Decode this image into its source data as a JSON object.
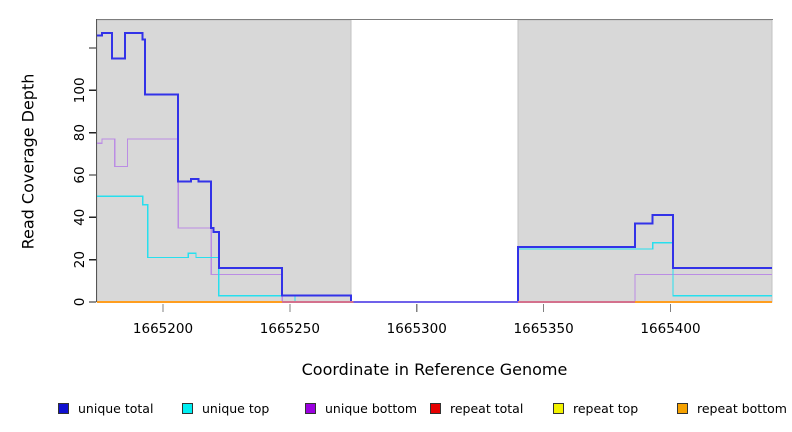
{
  "chart_data": {
    "type": "line",
    "subtype": "step-coverage",
    "title": "",
    "xlabel": "Coordinate in Reference Genome",
    "ylabel": "Read Coverage Depth",
    "xlim": [
      1665174,
      1665440
    ],
    "ylim": [
      0,
      133
    ],
    "grid": false,
    "legend_position": "bottom",
    "x_ticks": [
      1665200,
      1665250,
      1665300,
      1665350,
      1665400
    ],
    "y_ticks": [
      0,
      20,
      40,
      60,
      80,
      100,
      120
    ],
    "y_tick_labels": [
      "0",
      "20",
      "40",
      "60",
      "80",
      "100",
      ""
    ],
    "shaded_regions": [
      {
        "from": 1665174,
        "to": 1665274,
        "color": "#d8d8d8"
      },
      {
        "from": 1665340,
        "to": 1665440,
        "color": "#d8d8d8"
      }
    ],
    "gap_region": {
      "from": 1665274,
      "to": 1665340
    },
    "series": [
      {
        "id": "repeat-total",
        "name": "repeat total",
        "color": "#e00000",
        "width": 1.2,
        "points": [
          [
            1665174,
            0
          ]
        ]
      },
      {
        "id": "repeat-top",
        "name": "repeat top",
        "color": "#f0f000",
        "width": 1.2,
        "points": [
          [
            1665174,
            0
          ]
        ]
      },
      {
        "id": "repeat-bottom",
        "name": "repeat bottom",
        "color": "#ff9e1f",
        "width": 1.5,
        "points": [
          [
            1665174,
            0
          ]
        ]
      },
      {
        "id": "unique-bottom",
        "name": "unique bottom",
        "color": "#bb8de4",
        "width": 1.2,
        "points": [
          [
            1665174,
            75
          ],
          [
            1665176,
            77
          ],
          [
            1665181,
            64
          ],
          [
            1665186,
            77
          ],
          [
            1665206,
            35
          ],
          [
            1665219,
            13
          ],
          [
            1665247,
            0
          ],
          [
            1665386,
            13
          ]
        ]
      },
      {
        "id": "unique-top",
        "name": "unique top",
        "color": "#27dfee",
        "width": 1.3,
        "points": [
          [
            1665174,
            50
          ],
          [
            1665192,
            46
          ],
          [
            1665194,
            21
          ],
          [
            1665210,
            23
          ],
          [
            1665213,
            21
          ],
          [
            1665222,
            3
          ],
          [
            1665252,
            0
          ],
          [
            1665340,
            25
          ],
          [
            1665393,
            28
          ],
          [
            1665401,
            3
          ]
        ]
      },
      {
        "id": "unique-total",
        "name": "unique total",
        "color": "#3232e8",
        "width": 2,
        "points": [
          [
            1665174,
            126
          ],
          [
            1665176,
            127
          ],
          [
            1665180,
            115
          ],
          [
            1665185,
            127
          ],
          [
            1665192,
            124
          ],
          [
            1665193,
            98
          ],
          [
            1665206,
            57
          ],
          [
            1665211,
            58
          ],
          [
            1665214,
            57
          ],
          [
            1665219,
            35
          ],
          [
            1665220,
            33
          ],
          [
            1665222,
            16
          ],
          [
            1665247,
            3
          ],
          [
            1665274,
            0
          ],
          [
            1665340,
            26
          ],
          [
            1665386,
            37
          ],
          [
            1665393,
            41
          ],
          [
            1665401,
            16
          ]
        ]
      }
    ],
    "baseline_segments": [
      {
        "from": 1665174,
        "to": 1665247,
        "color": "#ff9e1f"
      },
      {
        "from": 1665247,
        "to": 1665275,
        "color": "#d4718d"
      },
      {
        "from": 1665275,
        "to": 1665340,
        "color": "#6f61ea"
      },
      {
        "from": 1665340,
        "to": 1665386,
        "color": "#d4718d"
      },
      {
        "from": 1665386,
        "to": 1665440,
        "color": "#ff9e1f"
      }
    ],
    "legend": [
      {
        "label": "unique total",
        "color": "#1010d0"
      },
      {
        "label": "unique top",
        "color": "#00eef2"
      },
      {
        "label": "unique bottom",
        "color": "#9b00e0"
      },
      {
        "label": "repeat total",
        "color": "#e60000"
      },
      {
        "label": "repeat top",
        "color": "#f2f200"
      },
      {
        "label": "repeat bottom",
        "color": "#f5a100"
      }
    ]
  }
}
